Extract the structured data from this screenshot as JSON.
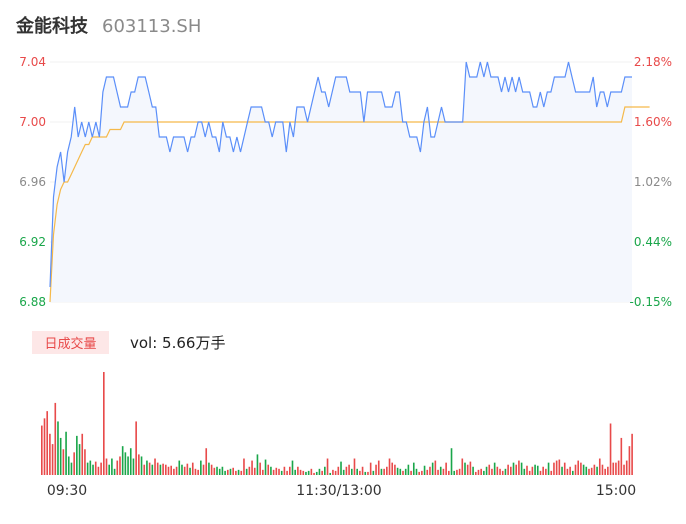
{
  "header": {
    "name": "金能科技",
    "code": "603113.SH"
  },
  "volume_panel": {
    "tag": "日成交量",
    "text": "vol: 5.66万手"
  },
  "colors": {
    "price_line": "#5b8ff9",
    "avg_line": "#f5b94a",
    "area_fill": "#f4f7fd",
    "up": "#e84a4a",
    "down": "#1aa64a",
    "flat_label": "#8a8a8a"
  },
  "chart_data": [
    {
      "type": "line",
      "title": "",
      "x_ticks": [
        "09:30",
        "11:30/13:00",
        "15:00"
      ],
      "ylim": [
        6.88,
        7.04
      ],
      "y_ticks_left": [
        "7.04",
        "7.00",
        "6.96",
        "6.92",
        "6.88"
      ],
      "y_ticks_right": [
        "2.18%",
        "1.60%",
        "1.02%",
        "0.44%",
        "-0.15%"
      ],
      "series": [
        {
          "role": "price",
          "values": [
            6.89,
            6.95,
            6.97,
            6.98,
            6.96,
            6.98,
            6.99,
            7.01,
            6.99,
            7.0,
            6.99,
            7.0,
            6.99,
            7.0,
            6.99,
            7.02,
            7.03,
            7.03,
            7.03,
            7.02,
            7.01,
            7.01,
            7.01,
            7.02,
            7.02,
            7.03,
            7.03,
            7.03,
            7.02,
            7.01,
            7.01,
            6.99,
            6.99,
            6.99,
            6.98,
            6.99,
            6.99,
            6.99,
            6.99,
            6.98,
            6.99,
            6.99,
            7.0,
            7.0,
            6.99,
            7.0,
            6.99,
            6.99,
            6.98,
            7.0,
            6.99,
            6.99,
            6.98,
            6.99,
            6.98,
            6.99,
            7.0,
            7.01,
            7.01,
            7.01,
            7.01,
            7.0,
            7.0,
            6.99,
            7.0,
            7.0,
            7.0,
            6.98,
            7.0,
            6.99,
            7.01,
            7.01,
            7.01,
            7.0,
            7.01,
            7.02,
            7.03,
            7.02,
            7.02,
            7.01,
            7.02,
            7.03,
            7.03,
            7.03,
            7.03,
            7.02,
            7.02,
            7.02,
            7.02,
            7.0,
            7.02,
            7.02,
            7.02,
            7.02,
            7.02,
            7.01,
            7.01,
            7.01,
            7.02,
            7.02,
            7.0,
            7.0,
            6.99,
            6.99,
            6.99,
            6.98,
            7.0,
            7.01,
            6.99,
            6.99,
            7.0,
            7.01,
            7.0,
            7.0,
            7.0,
            7.0,
            7.0,
            7.0,
            7.04,
            7.03,
            7.03,
            7.03,
            7.04,
            7.03,
            7.04,
            7.03,
            7.03,
            7.03,
            7.02,
            7.03,
            7.02,
            7.03,
            7.02,
            7.03,
            7.02,
            7.02,
            7.02,
            7.01,
            7.01,
            7.02,
            7.01,
            7.02,
            7.02,
            7.03,
            7.03,
            7.03,
            7.03,
            7.04,
            7.03,
            7.02,
            7.02,
            7.02,
            7.02,
            7.02,
            7.03,
            7.01,
            7.02,
            7.02,
            7.01,
            7.02,
            7.02,
            7.02,
            7.02,
            7.03,
            7.03,
            7.03
          ],
          "color": "#5b8ff9"
        },
        {
          "role": "average",
          "values": [
            6.88,
            6.925,
            6.945,
            6.955,
            6.96,
            6.96,
            6.965,
            6.97,
            6.975,
            6.98,
            6.985,
            6.985,
            6.99,
            6.99,
            6.99,
            6.99,
            6.99,
            6.995,
            6.995,
            6.995,
            6.995,
            7.0,
            7.0,
            7.0,
            7.0,
            7.0,
            7.0,
            7.0,
            7.0,
            7.0,
            7.0,
            7.0,
            7.0,
            7.0,
            7.0,
            7.0,
            7.0,
            7.0,
            7.0,
            7.0,
            7.0,
            7.0,
            7.0,
            7.0,
            7.0,
            7.0,
            7.0,
            7.0,
            7.0,
            7.0,
            7.0,
            7.0,
            7.0,
            7.0,
            7.0,
            7.0,
            7.0,
            7.0,
            7.0,
            7.0,
            7.0,
            7.0,
            7.0,
            7.0,
            7.0,
            7.0,
            7.0,
            7.0,
            7.0,
            7.0,
            7.0,
            7.0,
            7.0,
            7.0,
            7.0,
            7.0,
            7.0,
            7.0,
            7.0,
            7.0,
            7.0,
            7.0,
            7.0,
            7.0,
            7.0,
            7.0,
            7.0,
            7.0,
            7.0,
            7.0,
            7.0,
            7.0,
            7.0,
            7.0,
            7.0,
            7.0,
            7.0,
            7.0,
            7.0,
            7.0,
            7.0,
            7.0,
            7.0,
            7.0,
            7.0,
            7.0,
            7.0,
            7.0,
            7.0,
            7.0,
            7.0,
            7.0,
            7.0,
            7.0,
            7.0,
            7.0,
            7.0,
            7.0,
            7.0,
            7.0,
            7.0,
            7.0,
            7.0,
            7.0,
            7.0,
            7.0,
            7.0,
            7.0,
            7.0,
            7.0,
            7.0,
            7.0,
            7.0,
            7.0,
            7.0,
            7.0,
            7.0,
            7.0,
            7.0,
            7.0,
            7.0,
            7.0,
            7.0,
            7.0,
            7.0,
            7.0,
            7.0,
            7.0,
            7.0,
            7.0,
            7.0,
            7.0,
            7.0,
            7.0,
            7.0,
            7.0,
            7.0,
            7.0,
            7.0,
            7.0,
            7.0,
            7.0,
            7.0,
            7.01,
            7.01,
            7.01,
            7.01,
            7.01,
            7.01,
            7.01,
            7.01
          ],
          "color": "#f5b94a"
        }
      ]
    },
    {
      "type": "bar",
      "title": "",
      "ylabel": "",
      "ylim": [
        0,
        100
      ],
      "values": [
        48,
        55,
        62,
        40,
        30,
        70,
        52,
        36,
        25,
        42,
        18,
        12,
        22,
        38,
        30,
        40,
        25,
        12,
        14,
        10,
        13,
        8,
        12,
        100,
        16,
        10,
        16,
        6,
        14,
        18,
        28,
        22,
        18,
        26,
        16,
        52,
        20,
        18,
        10,
        14,
        12,
        10,
        16,
        12,
        10,
        11,
        10,
        8,
        9,
        6,
        8,
        14,
        10,
        8,
        11,
        7,
        12,
        6,
        5,
        14,
        10,
        26,
        12,
        10,
        7,
        8,
        6,
        8,
        4,
        5,
        6,
        7,
        4,
        5,
        4,
        16,
        6,
        8,
        14,
        7,
        20,
        12,
        5,
        15,
        10,
        8,
        5,
        7,
        6,
        4,
        8,
        4,
        8,
        14,
        5,
        8,
        5,
        4,
        3,
        4,
        6,
        2,
        3,
        6,
        4,
        8,
        16,
        2,
        5,
        4,
        8,
        13,
        5,
        8,
        10,
        6,
        16,
        6,
        4,
        8,
        3,
        3,
        12,
        4,
        10,
        14,
        6,
        6,
        8,
        16,
        12,
        10,
        7,
        6,
        4,
        6,
        10,
        4,
        12,
        6,
        3,
        4,
        9,
        5,
        8,
        12,
        14,
        5,
        8,
        6,
        12,
        4,
        26,
        4,
        5,
        6,
        16,
        12,
        10,
        13,
        8,
        3,
        5,
        6,
        4,
        8,
        10,
        6,
        12,
        8,
        6,
        4,
        6,
        10,
        8,
        12,
        10,
        14,
        12,
        6,
        9,
        4,
        8,
        10,
        9,
        4,
        8,
        6,
        12,
        4,
        12,
        14,
        15,
        8,
        12,
        6,
        8,
        4,
        10,
        14,
        12,
        10,
        8,
        6,
        7,
        10,
        8,
        16,
        10,
        6,
        8,
        50,
        12,
        12,
        14,
        36,
        10,
        14,
        28,
        40
      ],
      "up_down": "UUUUUUDDUDDDUDDUUDDDUUUUUDDDUUDDDDDUUDUDUDUUDUUUUUUDDUUDUUUDUUDUUDDDDUDUUDUUDUUUDUUDUDUUUDUUUDDUUUDDUUDDUDUDUUUDDUUDUDUUDUUDUUDUUUUUDDUDDUDDUUDUUDUUDUUUDDUUUDUUDUUUDDUUDUUUDUUDUUDDUUUDDUUUDUUUUDUUUDUUUDDUUUDUUUU"
    }
  ]
}
